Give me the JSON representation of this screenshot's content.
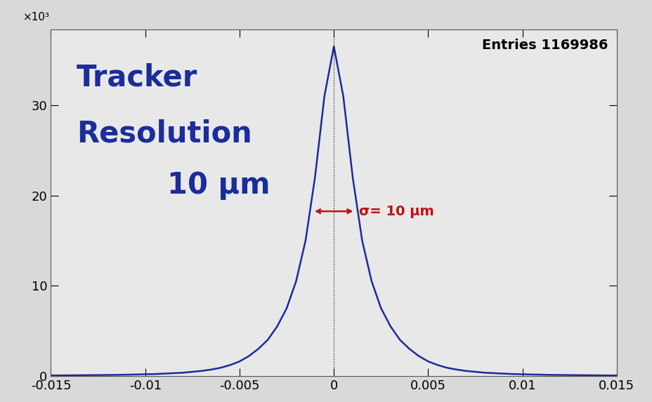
{
  "chart_data": {
    "type": "line",
    "title_lines": [
      "Tracker",
      "Resolution",
      "10 µm"
    ],
    "y_scale_label": "×10³",
    "annotations": [
      "Entries 1169986",
      "σ= 10 µm"
    ],
    "color": "#1c2a9c",
    "x": [
      -0.015,
      -0.0145,
      -0.014,
      -0.0135,
      -0.013,
      -0.0125,
      -0.012,
      -0.0115,
      -0.011,
      -0.0105,
      -0.01,
      -0.0095,
      -0.009,
      -0.0085,
      -0.008,
      -0.0075,
      -0.007,
      -0.0065,
      -0.006,
      -0.0055,
      -0.005,
      -0.0045,
      -0.004,
      -0.0035,
      -0.003,
      -0.0025,
      -0.002,
      -0.0015,
      -0.001,
      -0.0005,
      0,
      0.0005,
      0.001,
      0.0015,
      0.002,
      0.0025,
      0.003,
      0.0035,
      0.004,
      0.0045,
      0.005,
      0.0055,
      0.006,
      0.0065,
      0.007,
      0.0075,
      0.008,
      0.0085,
      0.009,
      0.0095,
      0.01,
      0.0105,
      0.011,
      0.0115,
      0.012,
      0.0125,
      0.013,
      0.0135,
      0.014,
      0.0145,
      0.015
    ],
    "values": [
      0.05,
      0.05,
      0.06,
      0.07,
      0.08,
      0.09,
      0.1,
      0.11,
      0.13,
      0.15,
      0.18,
      0.2,
      0.25,
      0.3,
      0.35,
      0.45,
      0.55,
      0.7,
      0.9,
      1.2,
      1.6,
      2.2,
      3.0,
      4.0,
      5.5,
      7.5,
      10.5,
      15.0,
      22.0,
      31.0,
      36.5,
      31.0,
      22.0,
      15.0,
      10.5,
      7.5,
      5.5,
      4.0,
      3.0,
      2.2,
      1.6,
      1.2,
      0.9,
      0.7,
      0.55,
      0.45,
      0.35,
      0.3,
      0.25,
      0.2,
      0.18,
      0.15,
      0.13,
      0.11,
      0.1,
      0.09,
      0.08,
      0.07,
      0.06,
      0.05,
      0.05
    ],
    "xlim": [
      -0.015,
      0.015
    ],
    "xticks": [
      -0.015,
      -0.01,
      -0.005,
      0,
      0.005,
      0.01,
      0.015
    ],
    "ylim": [
      0,
      38.4
    ],
    "yticks": [
      0,
      10,
      20,
      30
    ],
    "grid": false
  }
}
